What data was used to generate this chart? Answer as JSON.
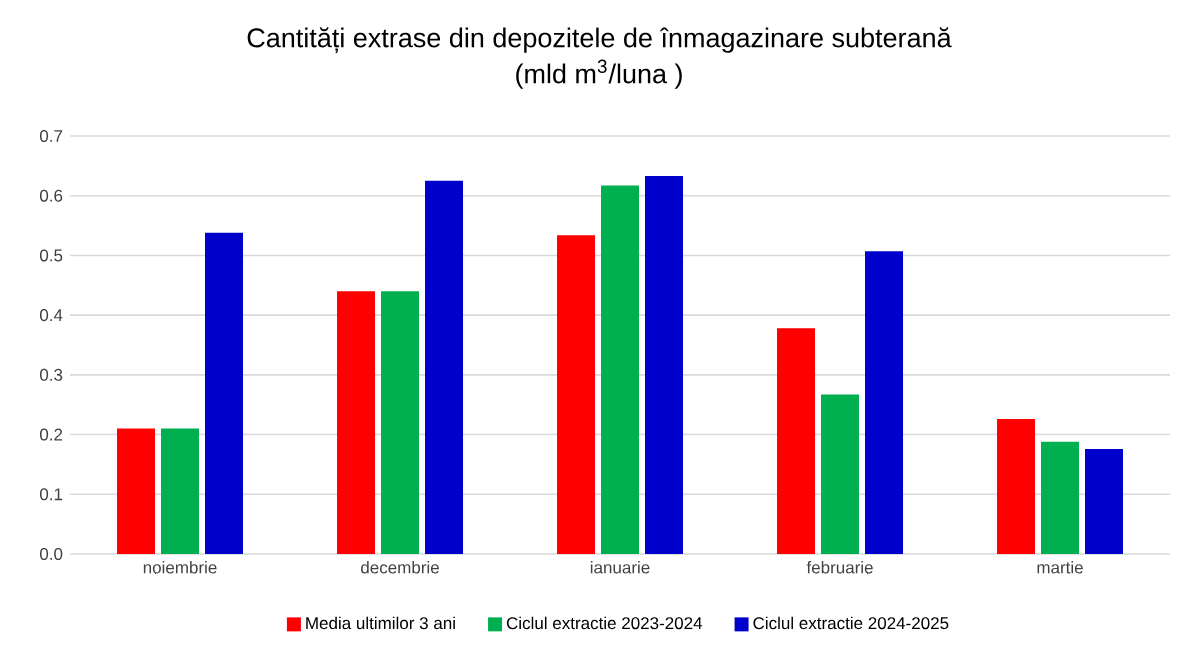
{
  "chart_data": {
    "type": "bar",
    "title": "Cantități extrase din depozitele de înmagazinare subterană",
    "subtitle": "(mld m$^{3}$/luna )",
    "categories": [
      "noiembrie",
      "decembrie",
      "ianuarie",
      "februarie",
      "martie"
    ],
    "series": [
      {
        "name": "Media ultimilor 3 ani",
        "color": "#ff0000",
        "values": [
          0.21,
          0.44,
          0.534,
          0.378,
          0.226
        ]
      },
      {
        "name": "Ciclul extractie  2023-2024",
        "color": "#00b050",
        "values": [
          0.21,
          0.44,
          0.617,
          0.267,
          0.188
        ]
      },
      {
        "name": "Ciclul extractie  2024-2025",
        "color": "#0000cc",
        "values": [
          0.538,
          0.625,
          0.633,
          0.507,
          0.176
        ]
      }
    ],
    "ylim": [
      0,
      0.7
    ],
    "yticks": [
      {
        "value": 0,
        "label": "0.0"
      },
      {
        "value": 0.1,
        "label": "0.1"
      },
      {
        "value": 0.2,
        "label": "0.2"
      },
      {
        "value": 0.3,
        "label": "0.3"
      },
      {
        "value": 0.4,
        "label": "0.4"
      },
      {
        "value": 0.5,
        "label": "0.5"
      },
      {
        "value": 0.6,
        "label": "0.6"
      },
      {
        "value": 0.7,
        "label": "0.7"
      }
    ],
    "grid": "y",
    "legend": "bottom"
  }
}
